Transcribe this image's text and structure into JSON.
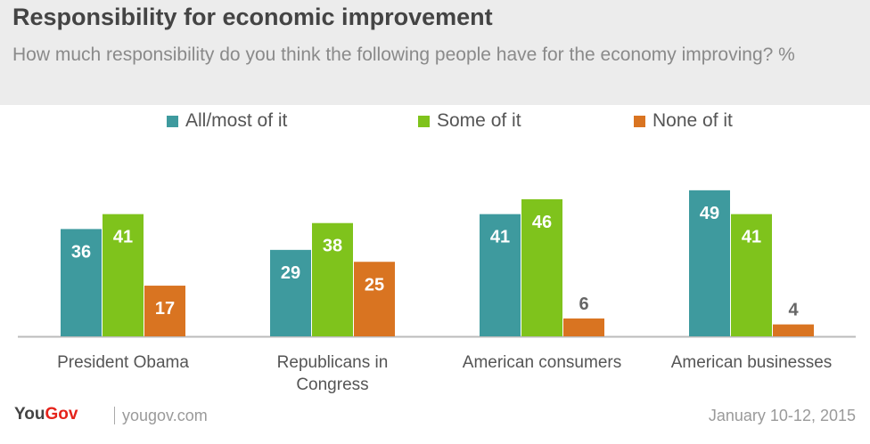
{
  "title": "Responsibility  for economic improvement",
  "subtitle": "How much responsibility do you think the following people have for the economy improving? %",
  "footer": {
    "brand_you": "You",
    "brand_gov": "Gov",
    "site": "yougov.com",
    "date": "January 10-12, 2015"
  },
  "colors": {
    "all_most": "#3e9a9e",
    "some": "#7fc31c",
    "none": "#d97421",
    "label_light": "#ffffff",
    "label_dark": "#666666",
    "baseline": "#bbbbbb"
  },
  "chart_data": {
    "type": "bar",
    "categories": [
      "President Obama",
      "Republicans in Congress",
      "American consumers",
      "American businesses"
    ],
    "series": [
      {
        "name": "All/most of it",
        "values": [
          36,
          29,
          41,
          49
        ]
      },
      {
        "name": "Some of it",
        "values": [
          41,
          38,
          46,
          41
        ]
      },
      {
        "name": "None of it",
        "values": [
          17,
          25,
          6,
          4
        ]
      }
    ],
    "title": "Responsibility  for economic improvement",
    "ylabel": "",
    "xlabel": "",
    "ylim": [
      0,
      50
    ],
    "legend": "top",
    "grid": false
  }
}
